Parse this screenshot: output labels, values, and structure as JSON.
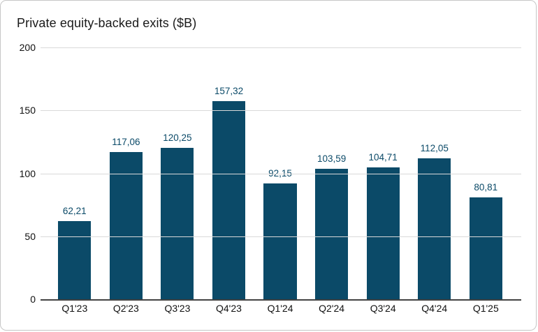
{
  "header": {
    "title": "Private equity-backed exits ($B)"
  },
  "colors": {
    "bar": "#0b4a68",
    "data_label": "#0b4a68",
    "gridline": "#d9d9d9",
    "axis_line": "#424242",
    "title_text": "#1a1a1a",
    "tick_text": "#111111",
    "background": "#ffffff",
    "card_border": "#c6c6c6"
  },
  "chart_data": {
    "type": "bar",
    "title": "Private equity-backed exits ($B)",
    "categories": [
      "Q1'23",
      "Q2'23",
      "Q3'23",
      "Q4'23",
      "Q1'24",
      "Q2'24",
      "Q3'24",
      "Q4'24",
      "Q1'25"
    ],
    "values": [
      62.21,
      117.06,
      120.25,
      157.32,
      92.15,
      103.59,
      104.71,
      112.05,
      80.81
    ],
    "value_labels": [
      "62,21",
      "117,06",
      "120,25",
      "157,32",
      "92,15",
      "103,59",
      "104,71",
      "112,05",
      "80,81"
    ],
    "xlabel": "",
    "ylabel": "",
    "ylim": [
      0,
      200
    ],
    "yticks": [
      0,
      50,
      100,
      150,
      200
    ],
    "grid": true,
    "legend_position": "none",
    "bar_color": "#0b4a68"
  }
}
